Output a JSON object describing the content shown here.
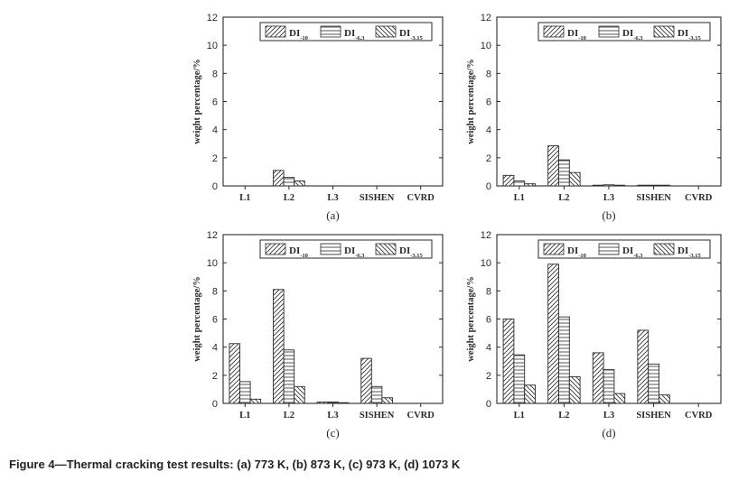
{
  "caption": "Figure 4—Thermal cracking test results: (a) 773 K, (b) 873 K, (c) 973 K, (d) 1073 K",
  "colors": {
    "ink": "#2a2a2a",
    "background": "#ffffff"
  },
  "chart_data": [
    {
      "type": "bar",
      "panel_label": "(a)",
      "categories": [
        "L1",
        "L2",
        "L3",
        "SISHEN",
        "CVRD"
      ],
      "ylabel": "weight percentage/%",
      "ylim": [
        0,
        12
      ],
      "yticks": [
        "0",
        "2",
        "4",
        "6",
        "8",
        "10",
        "12"
      ],
      "grid": false,
      "legend_position": "top-right",
      "series": [
        {
          "name": "DI",
          "sub": "-10",
          "hatch": "diagonal",
          "values": [
            0,
            1.1,
            0,
            0,
            0
          ]
        },
        {
          "name": "DI",
          "sub": "-6.3",
          "hatch": "horizontal",
          "values": [
            0,
            0.6,
            0,
            0,
            0
          ]
        },
        {
          "name": "DI",
          "sub": "-3.15",
          "hatch": "backdiagonal",
          "values": [
            0,
            0.35,
            0,
            0,
            0
          ]
        }
      ]
    },
    {
      "type": "bar",
      "panel_label": "(b)",
      "categories": [
        "L1",
        "L2",
        "L3",
        "SISHEN",
        "CVRD"
      ],
      "ylabel": "weight percentage/%",
      "ylim": [
        0,
        12
      ],
      "yticks": [
        "0",
        "2",
        "4",
        "6",
        "8",
        "10",
        "12"
      ],
      "grid": false,
      "legend_position": "top-right",
      "series": [
        {
          "name": "DI",
          "sub": "-10",
          "hatch": "diagonal",
          "values": [
            0.75,
            2.85,
            0.05,
            0.05,
            0
          ]
        },
        {
          "name": "DI",
          "sub": "-6.3",
          "hatch": "horizontal",
          "values": [
            0.35,
            1.85,
            0.08,
            0.05,
            0
          ]
        },
        {
          "name": "DI",
          "sub": "-3.15",
          "hatch": "backdiagonal",
          "values": [
            0.15,
            0.95,
            0.03,
            0.04,
            0
          ]
        }
      ]
    },
    {
      "type": "bar",
      "panel_label": "(c)",
      "categories": [
        "L1",
        "L2",
        "L3",
        "SISHEN",
        "CVRD"
      ],
      "ylabel": "weight percentage/%",
      "ylim": [
        0,
        12
      ],
      "yticks": [
        "0",
        "2",
        "4",
        "6",
        "8",
        "10",
        "12"
      ],
      "grid": false,
      "legend_position": "top-right",
      "series": [
        {
          "name": "DI",
          "sub": "-10",
          "hatch": "diagonal",
          "values": [
            4.25,
            8.1,
            0.1,
            3.2,
            0
          ]
        },
        {
          "name": "DI",
          "sub": "-6.3",
          "hatch": "horizontal",
          "values": [
            1.55,
            3.8,
            0.1,
            1.2,
            0
          ]
        },
        {
          "name": "DI",
          "sub": "-3.15",
          "hatch": "backdiagonal",
          "values": [
            0.3,
            1.2,
            0.05,
            0.4,
            0
          ]
        }
      ]
    },
    {
      "type": "bar",
      "panel_label": "(d)",
      "categories": [
        "L1",
        "L2",
        "L3",
        "SISHEN",
        "CVRD"
      ],
      "ylabel": "weight percentage/%",
      "ylim": [
        0,
        12
      ],
      "yticks": [
        "0",
        "2",
        "4",
        "6",
        "8",
        "10",
        "12"
      ],
      "grid": false,
      "legend_position": "top-right",
      "series": [
        {
          "name": "DI",
          "sub": "-10",
          "hatch": "diagonal",
          "values": [
            6.0,
            9.9,
            3.6,
            5.2,
            0
          ]
        },
        {
          "name": "DI",
          "sub": "-6.3",
          "hatch": "horizontal",
          "values": [
            3.45,
            6.15,
            2.4,
            2.8,
            0
          ]
        },
        {
          "name": "DI",
          "sub": "-3.15",
          "hatch": "backdiagonal",
          "values": [
            1.3,
            1.9,
            0.7,
            0.6,
            0
          ]
        }
      ]
    }
  ]
}
